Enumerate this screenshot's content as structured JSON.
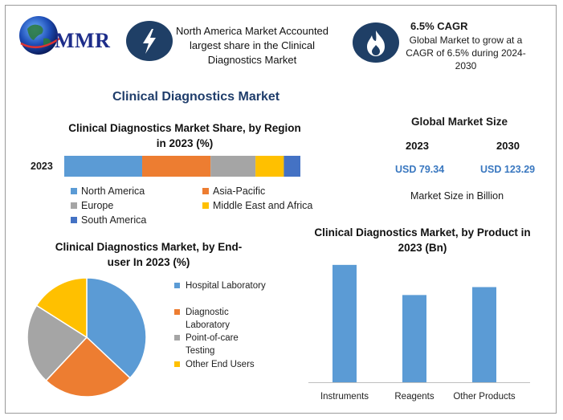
{
  "brand": {
    "logo_text": "MMR"
  },
  "header": {
    "card1": {
      "icon": "lightning-icon",
      "text": "North America Market Accounted largest share in the Clinical Diagnostics Market"
    },
    "card2": {
      "icon": "flame-icon",
      "title": "6.5% CAGR",
      "text": "Global Market to grow at a CAGR of 6.5% during 2024-2030"
    }
  },
  "page_title": "Clinical Diagnostics Market",
  "market_size": {
    "title": "Global Market Size",
    "year1": "2023",
    "year2": "2030",
    "value1": "USD 79.34",
    "value2": "USD 123.29",
    "note": "Market Size in Billion"
  },
  "colors": {
    "blue": "#5b9bd5",
    "orange": "#ed7d31",
    "gray": "#a5a5a5",
    "yellow": "#ffc000",
    "darkblue": "#4472c4",
    "navy": "#1f3f66"
  },
  "chart_data": [
    {
      "type": "bar",
      "orientation": "horizontal-stacked",
      "title": "Clinical Diagnostics Market Share, by Region in 2023 (%)",
      "categories": [
        "2023"
      ],
      "series": [
        {
          "name": "North America",
          "values": [
            33
          ],
          "color": "#5b9bd5"
        },
        {
          "name": "Asia-Pacific",
          "values": [
            29
          ],
          "color": "#ed7d31"
        },
        {
          "name": "Europe",
          "values": [
            19
          ],
          "color": "#a5a5a5"
        },
        {
          "name": "Middle East and Africa",
          "values": [
            12
          ],
          "color": "#ffc000"
        },
        {
          "name": "South America",
          "values": [
            7
          ],
          "color": "#4472c4"
        }
      ],
      "xlim": [
        0,
        100
      ]
    },
    {
      "type": "pie",
      "title": "Clinical Diagnostics Market, by End-user In 2023 (%)",
      "labels": [
        "Hospital Laboratory",
        "Diagnostic Laboratory",
        "Point-of-care Testing",
        "Other End Users"
      ],
      "values": [
        37,
        25,
        22,
        16
      ],
      "colors": [
        "#5b9bd5",
        "#ed7d31",
        "#a5a5a5",
        "#ffc000"
      ]
    },
    {
      "type": "bar",
      "title": "Clinical Diagnostics Market, by Product in 2023 (Bn)",
      "categories": [
        "Instruments",
        "Reagents",
        "Other Products"
      ],
      "values": [
        148,
        110,
        120
      ],
      "ylim": [
        0,
        160
      ],
      "color": "#5b9bd5"
    }
  ]
}
